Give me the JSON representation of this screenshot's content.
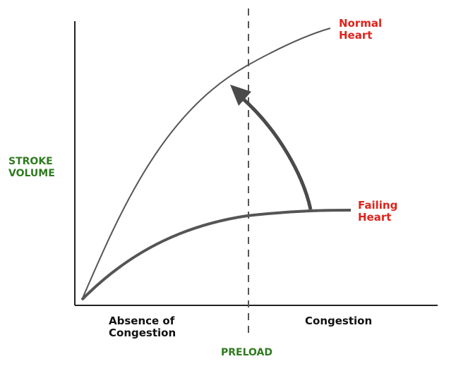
{
  "y_axis_label_line1": "STROKE",
  "y_axis_label_line2": "VOLUME",
  "x_axis_label": "PRELOAD",
  "region_left_line1": "Absence of",
  "region_left_line2": "Congestion",
  "region_right": "Congestion",
  "curve_normal_line1": "Normal",
  "curve_normal_line2": "Heart",
  "curve_failing_line1": "Failing",
  "curve_failing_line2": "Heart",
  "colors": {
    "curve_label": "#e0231c",
    "axis_label": "#2f7a1f",
    "line": "#555555",
    "arrow": "#4a4a4a"
  }
}
